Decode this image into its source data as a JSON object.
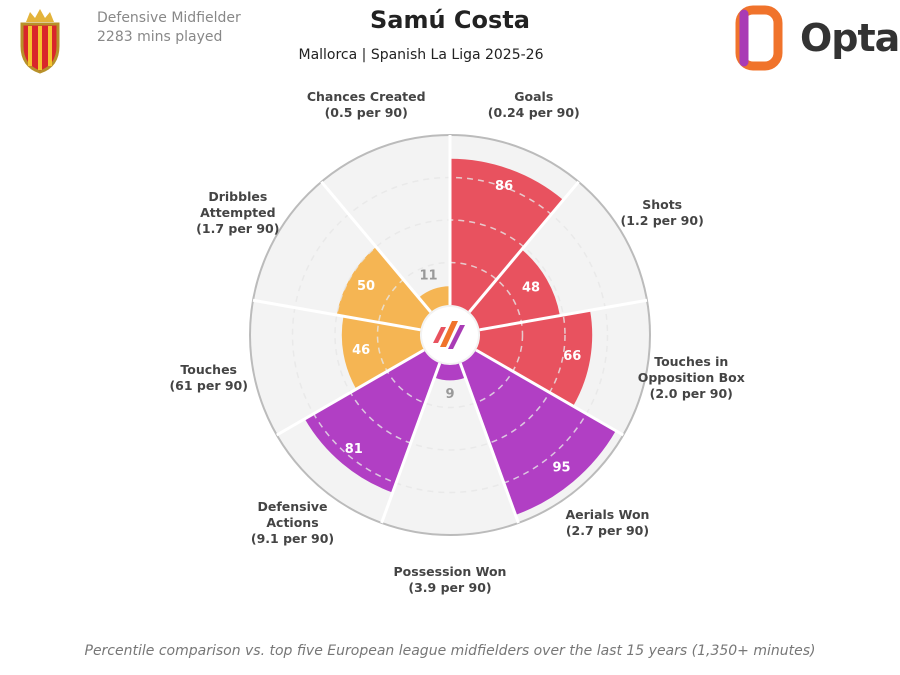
{
  "header": {
    "position": "Defensive Midfielder",
    "minutes": "2283 mins played",
    "brand": "Opta"
  },
  "chart_data": {
    "type": "polar-bar",
    "title": "Samú Costa",
    "subtitle": "Mallorca | Spanish La Liga 2025-26",
    "categories": [
      "Goals",
      "Shots",
      "Touches in Opposition Box",
      "Aerials Won",
      "Possession Won",
      "Defensive Actions",
      "Touches",
      "Dribbles Attempted",
      "Chances Created"
    ],
    "per90": [
      "(0.24 per 90)",
      "(1.2 per 90)",
      "(2.0 per 90)",
      "(2.7 per 90)",
      "(3.9 per 90)",
      "(9.1 per 90)",
      "(61 per 90)",
      "(1.7 per 90)",
      "(0.5 per 90)"
    ],
    "values": [
      86,
      48,
      66,
      95,
      9,
      81,
      46,
      50,
      11
    ],
    "colors": [
      "#e8525f",
      "#e8525f",
      "#e8525f",
      "#b13fc4",
      "#b13fc4",
      "#b13fc4",
      "#f5b553",
      "#f5b553",
      "#f5b553"
    ],
    "ylim": [
      0,
      100
    ],
    "yticks": [
      25,
      50,
      75,
      100
    ],
    "note": "Percentile comparison vs. top five European league midfielders over the last 15 years (1,350+ minutes)"
  }
}
